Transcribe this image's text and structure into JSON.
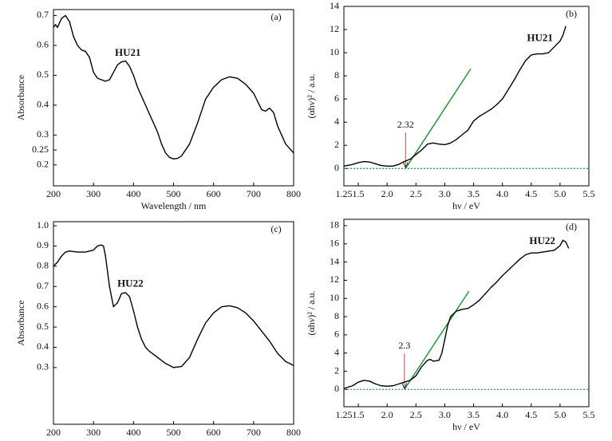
{
  "chart_data": [
    {
      "type": "line",
      "panel": "(a)",
      "annotation": "HU21",
      "x_label": "Wavelength / nm",
      "y_label": "Absorbance",
      "xlim": [
        200,
        800
      ],
      "ylim": [
        0.13,
        0.72
      ],
      "xticks": [
        200,
        300,
        400,
        500,
        600,
        700,
        800
      ],
      "yticks": [
        0.2,
        0.25,
        0.3,
        0.4,
        0.5,
        0.6,
        0.7
      ],
      "x": [
        200,
        205,
        210,
        220,
        230,
        240,
        250,
        260,
        270,
        280,
        290,
        300,
        310,
        320,
        330,
        340,
        350,
        360,
        370,
        380,
        390,
        400,
        410,
        420,
        430,
        440,
        450,
        460,
        470,
        480,
        490,
        500,
        510,
        520,
        540,
        560,
        580,
        600,
        620,
        640,
        660,
        680,
        700,
        720,
        730,
        740,
        750,
        760,
        780,
        800
      ],
      "series": [
        {
          "color": "#000000",
          "values": [
            0.66,
            0.67,
            0.66,
            0.69,
            0.7,
            0.68,
            0.63,
            0.6,
            0.585,
            0.58,
            0.56,
            0.51,
            0.49,
            0.485,
            0.48,
            0.485,
            0.51,
            0.535,
            0.545,
            0.548,
            0.53,
            0.5,
            0.46,
            0.43,
            0.4,
            0.37,
            0.34,
            0.31,
            0.27,
            0.24,
            0.225,
            0.22,
            0.222,
            0.23,
            0.27,
            0.34,
            0.42,
            0.46,
            0.485,
            0.495,
            0.49,
            0.47,
            0.44,
            0.385,
            0.38,
            0.39,
            0.375,
            0.33,
            0.27,
            0.24
          ]
        }
      ]
    },
    {
      "type": "line",
      "panel": "(b)",
      "annotation": "HU21",
      "x_label": "hν / eV",
      "y_label": "(αhν)² / a.u.",
      "xlim": [
        1.25,
        5.5
      ],
      "ylim": [
        -1.5,
        14
      ],
      "xticks": [
        1.25,
        1.5,
        {
          "value": 2,
          "label": "2.0"
        },
        2.5,
        {
          "value": 3,
          "label": "3.0"
        },
        3.5,
        {
          "value": 4,
          "label": "4.0"
        },
        4.5,
        {
          "value": 5,
          "label": "5.0"
        },
        5.5
      ],
      "yticks": [
        0,
        2,
        4,
        6,
        8,
        10,
        12,
        14
      ],
      "x": [
        1.25,
        1.4,
        1.5,
        1.6,
        1.7,
        1.8,
        1.9,
        2.0,
        2.1,
        2.2,
        2.3,
        2.4,
        2.5,
        2.6,
        2.7,
        2.8,
        2.9,
        3.0,
        3.1,
        3.2,
        3.3,
        3.4,
        3.5,
        3.6,
        3.7,
        3.8,
        3.9,
        4.0,
        4.1,
        4.2,
        4.3,
        4.4,
        4.5,
        4.6,
        4.7,
        4.8,
        4.9,
        5.0,
        5.05,
        5.1
      ],
      "series": [
        {
          "color": "#000000",
          "values": [
            0.2,
            0.35,
            0.5,
            0.6,
            0.55,
            0.4,
            0.25,
            0.2,
            0.2,
            0.35,
            0.6,
            0.8,
            1.2,
            1.6,
            2.1,
            2.2,
            2.1,
            2.05,
            2.2,
            2.5,
            2.9,
            3.3,
            4.1,
            4.5,
            4.8,
            5.1,
            5.5,
            6.0,
            6.8,
            7.6,
            8.5,
            9.3,
            9.8,
            9.9,
            9.9,
            10.0,
            10.5,
            11.0,
            11.5,
            12.3
          ]
        }
      ],
      "tangent": {
        "color": "#1a9a3a",
        "x": [
          2.32,
          3.45
        ],
        "y": [
          0,
          8.6
        ]
      },
      "baseline": 0,
      "band_gap": 2.32,
      "arrow_color": "#d04050"
    },
    {
      "type": "line",
      "panel": "(c)",
      "annotation": "HU22",
      "x_label": "Wavelength / nm",
      "y_label": "Absorbance",
      "xlim": [
        200,
        800
      ],
      "ylim": [
        0.02,
        1.02
      ],
      "xticks": [
        200,
        300,
        400,
        500,
        600,
        700,
        800
      ],
      "yticks": [
        0.3,
        0.4,
        0.5,
        0.6,
        0.7,
        0.8,
        0.9,
        {
          "value": 1,
          "label": "1.0"
        }
      ],
      "x": [
        200,
        210,
        220,
        230,
        240,
        260,
        280,
        300,
        310,
        320,
        325,
        330,
        340,
        350,
        360,
        370,
        380,
        390,
        400,
        410,
        420,
        430,
        440,
        460,
        480,
        500,
        520,
        540,
        560,
        580,
        600,
        620,
        640,
        660,
        680,
        700,
        720,
        740,
        760,
        780,
        800
      ],
      "series": [
        {
          "color": "#000000",
          "values": [
            0.8,
            0.82,
            0.85,
            0.87,
            0.875,
            0.87,
            0.87,
            0.88,
            0.9,
            0.905,
            0.9,
            0.85,
            0.7,
            0.6,
            0.62,
            0.665,
            0.67,
            0.65,
            0.58,
            0.5,
            0.44,
            0.4,
            0.38,
            0.35,
            0.32,
            0.3,
            0.305,
            0.35,
            0.44,
            0.52,
            0.57,
            0.6,
            0.605,
            0.595,
            0.57,
            0.53,
            0.48,
            0.43,
            0.37,
            0.33,
            0.31
          ]
        }
      ]
    },
    {
      "type": "line",
      "panel": "(d)",
      "annotation": "HU22",
      "x_label": "hν / eV",
      "y_label": "(αhν)² / a.u.",
      "xlim": [
        1.25,
        5.5
      ],
      "ylim": [
        -1.9,
        18.7
      ],
      "xticks": [
        1.25,
        1.5,
        {
          "value": 2,
          "label": "2.0"
        },
        2.5,
        {
          "value": 3,
          "label": "3.0"
        },
        3.5,
        {
          "value": 4,
          "label": "4.0"
        },
        4.5,
        {
          "value": 5,
          "label": "5.0"
        },
        5.5
      ],
      "yticks": [
        0,
        2,
        4,
        6,
        8,
        10,
        12,
        14,
        16,
        18
      ],
      "x": [
        1.25,
        1.4,
        1.5,
        1.6,
        1.7,
        1.8,
        1.9,
        2.0,
        2.1,
        2.2,
        2.3,
        2.4,
        2.5,
        2.6,
        2.7,
        2.75,
        2.8,
        2.9,
        2.95,
        3.0,
        3.05,
        3.1,
        3.2,
        3.3,
        3.4,
        3.5,
        3.6,
        3.7,
        3.8,
        3.9,
        4.0,
        4.1,
        4.2,
        4.3,
        4.4,
        4.5,
        4.6,
        4.7,
        4.8,
        4.9,
        5.0,
        5.05,
        5.1,
        5.15
      ],
      "series": [
        {
          "color": "#000000",
          "values": [
            0.1,
            0.4,
            0.8,
            1.0,
            0.9,
            0.6,
            0.4,
            0.35,
            0.4,
            0.6,
            0.8,
            1.0,
            1.5,
            2.5,
            3.2,
            3.3,
            3.1,
            3.2,
            4.0,
            5.5,
            7.0,
            8.0,
            8.6,
            8.8,
            8.9,
            9.3,
            9.8,
            10.5,
            11.2,
            11.8,
            12.5,
            13.1,
            13.7,
            14.3,
            14.8,
            15.0,
            15.0,
            15.1,
            15.2,
            15.3,
            15.8,
            16.4,
            16.2,
            15.5
          ]
        }
      ],
      "tangent": {
        "color": "#1a9a3a",
        "x": [
          2.3,
          3.42
        ],
        "y": [
          0,
          10.8
        ]
      },
      "baseline": 0,
      "band_gap": 2.3,
      "arrow_color": "#d04050"
    }
  ]
}
